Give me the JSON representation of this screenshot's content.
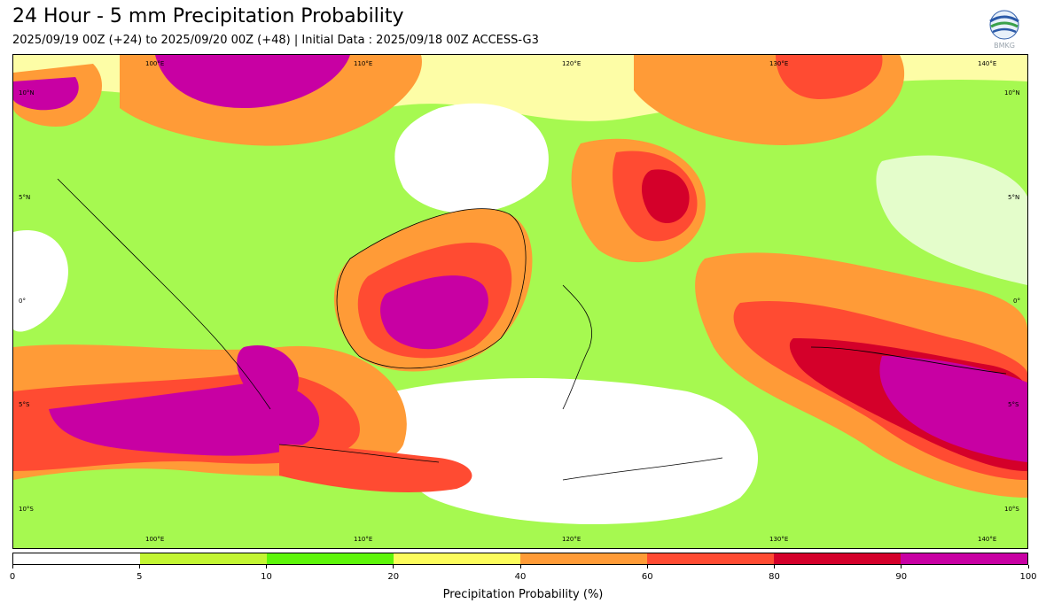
{
  "title": "24 Hour - 5 mm Precipitation Probability",
  "subtitle": "2025/09/19 00Z (+24) to 2025/09/20 00Z (+48) | Initial Data : 2025/09/18 00Z ACCESS-G3",
  "logo_text": "BMKG",
  "map": {
    "lon_labels": [
      "100°E",
      "110°E",
      "120°E",
      "130°E",
      "140°E"
    ],
    "lat_labels": [
      "10°N",
      "5°N",
      "0°",
      "5°S",
      "10°S"
    ]
  },
  "colorbar": {
    "ticks": [
      "0",
      "5",
      "10",
      "20",
      "40",
      "60",
      "80",
      "90",
      "100"
    ],
    "colors": [
      "#ffffff",
      "#c3f533",
      "#5ef50a",
      "#fcfc5c",
      "#ff9b37",
      "#ff4b32",
      "#d4002a",
      "#c800a3"
    ],
    "label": "Precipitation Probability (%)"
  }
}
